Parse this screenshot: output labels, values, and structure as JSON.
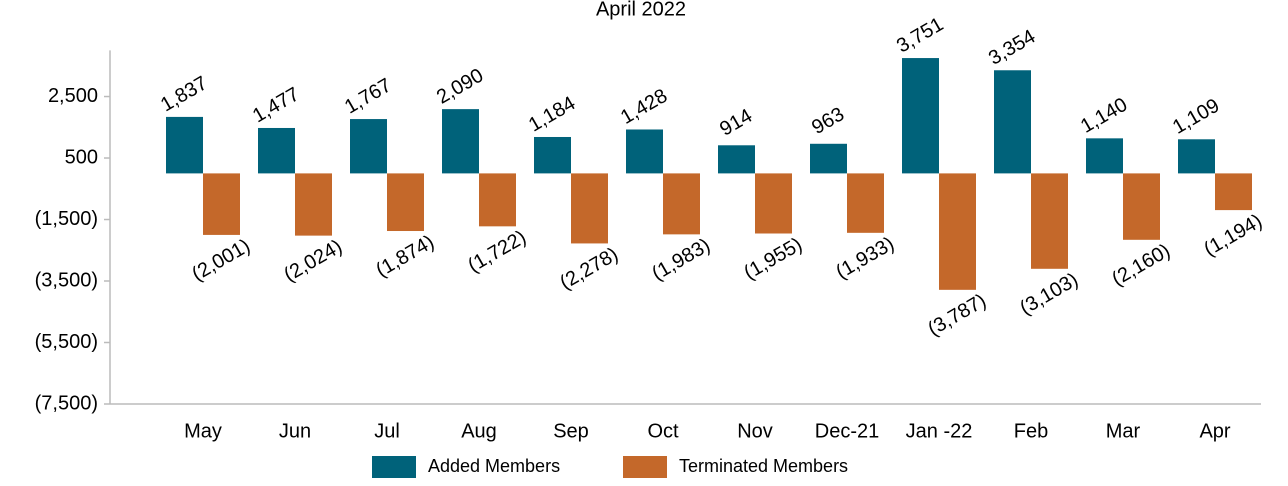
{
  "chart_data": {
    "type": "bar",
    "title": "April 2022",
    "categories": [
      "May",
      "Jun",
      "Jul",
      "Aug",
      "Sep",
      "Oct",
      "Nov",
      "Dec-21",
      "Jan -22",
      "Feb",
      "Mar",
      "Apr"
    ],
    "series": [
      {
        "name": "Added Members",
        "color": "#00627a",
        "values": [
          1837,
          1477,
          1767,
          2090,
          1184,
          1428,
          914,
          963,
          3751,
          3354,
          1140,
          1109
        ],
        "value_labels": [
          "1,837",
          "1,477",
          "1,767",
          "2,090",
          "1,184",
          "1,428",
          "914",
          "963",
          "3,751",
          "3,354",
          "1,140",
          "1,109"
        ]
      },
      {
        "name": "Terminated Members",
        "color": "#c4682a",
        "values": [
          -2001,
          -2024,
          -1874,
          -1722,
          -2278,
          -1983,
          -1955,
          -1933,
          -3787,
          -3103,
          -2160,
          -1194
        ],
        "value_labels": [
          "(2,001)",
          "(2,024)",
          "(1,874)",
          "(1,722)",
          "(2,278)",
          "(1,983)",
          "(1,955)",
          "(1,933)",
          "(3,787)",
          "(3,103)",
          "(2,160)",
          "(1,194)"
        ]
      }
    ],
    "ylim": [
      -7500,
      4000
    ],
    "yticks": [
      {
        "value": 2500,
        "label": "2,500"
      },
      500,
      {
        "value": -1500,
        "label": "(1,500)"
      },
      {
        "value": -3500,
        "label": "(3,500)"
      },
      {
        "value": -5500,
        "label": "(5,500)"
      },
      {
        "value": -7500,
        "label": "(7,500)"
      }
    ]
  }
}
